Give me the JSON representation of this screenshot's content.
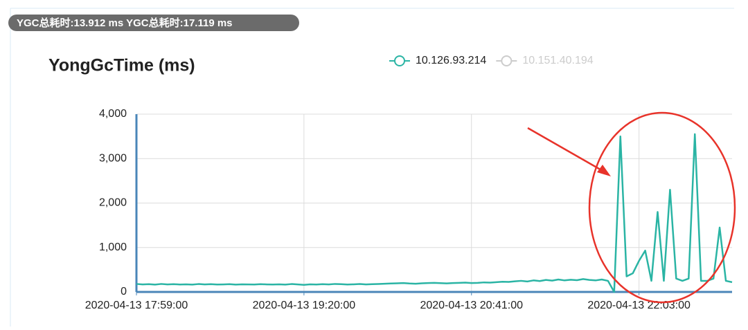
{
  "badge": "YGC总耗时:13.912 ms YGC总耗时:17.119 ms",
  "chart_data": {
    "type": "line",
    "title": "YongGcTime (ms)",
    "categories": [
      "2020-04-13 17:59:00",
      null,
      null,
      null,
      null,
      null,
      null,
      null,
      null,
      null,
      null,
      null,
      null,
      null,
      null,
      null,
      null,
      null,
      null,
      null,
      null,
      null,
      null,
      null,
      null,
      null,
      null,
      "2020-04-13 19:20:00",
      null,
      null,
      null,
      null,
      null,
      null,
      null,
      null,
      null,
      null,
      null,
      null,
      null,
      null,
      null,
      null,
      null,
      null,
      null,
      null,
      null,
      null,
      null,
      null,
      null,
      null,
      "2020-04-13 20:41:00",
      null,
      null,
      null,
      null,
      null,
      null,
      null,
      null,
      null,
      null,
      null,
      null,
      null,
      null,
      null,
      null,
      null,
      null,
      null,
      null,
      null,
      null,
      null,
      null,
      null,
      null,
      "2020-04-13 22:03:00",
      null,
      null,
      null,
      null,
      null,
      null,
      null,
      null,
      null,
      null,
      null,
      null,
      null,
      null,
      null
    ],
    "series": [
      {
        "name": "10.126.93.214",
        "color": "#2ab4a4",
        "values": [
          180,
          170,
          175,
          165,
          180,
          170,
          175,
          168,
          172,
          165,
          178,
          170,
          175,
          168,
          170,
          175,
          165,
          172,
          170,
          168,
          175,
          170,
          168,
          172,
          165,
          178,
          170,
          160,
          172,
          168,
          175,
          170,
          180,
          175,
          168,
          172,
          178,
          170,
          175,
          180,
          185,
          190,
          195,
          200,
          190,
          185,
          195,
          200,
          205,
          198,
          192,
          200,
          205,
          210,
          200,
          205,
          215,
          210,
          220,
          230,
          225,
          240,
          250,
          235,
          260,
          245,
          270,
          255,
          280,
          260,
          275,
          265,
          290,
          270,
          260,
          280,
          250,
          0,
          3500,
          350,
          420,
          700,
          930,
          250,
          1800,
          250,
          2300,
          300,
          250,
          300,
          3550,
          250,
          250,
          300,
          1450,
          250,
          220
        ]
      },
      {
        "name": "10.151.40.194",
        "color": "#cccccc",
        "visible": false
      }
    ],
    "ylim": [
      0,
      4000
    ],
    "yticks": [
      {
        "value": 0,
        "label": "0"
      },
      {
        "value": 1000,
        "label": "1,000"
      },
      {
        "value": 2000,
        "label": "2,000"
      },
      {
        "value": 3000,
        "label": "3,000"
      },
      {
        "value": 4000,
        "label": "4,000"
      }
    ],
    "grid": true
  }
}
